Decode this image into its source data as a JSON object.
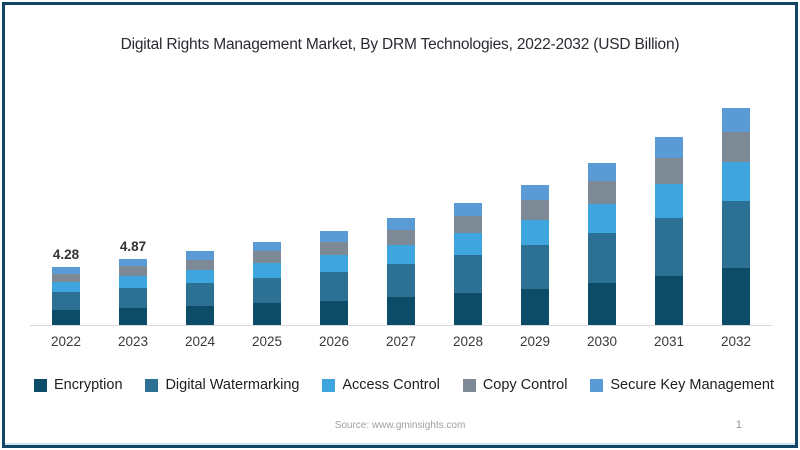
{
  "title": "Digital Rights Management Market, By DRM Technologies, 2022-2032 (USD Billion)",
  "footer": {
    "source": "Source: www.gminsights.com",
    "page_number": "1"
  },
  "colors": {
    "border": "#114563",
    "axis_line": "#d9d9d9",
    "title_text": "#2a2a33",
    "tick_text": "#3a3a3a",
    "footer_text": "#9ba1a6"
  },
  "chart_data": {
    "type": "bar",
    "stacked": true,
    "title": "Digital Rights Management Market, By DRM Technologies, 2022-2032 (USD Billion)",
    "xlabel": "",
    "ylabel": "USD Billion",
    "ylim": [
      0,
      17
    ],
    "grid": false,
    "legend_position": "bottom",
    "categories": [
      "2022",
      "2023",
      "2024",
      "2025",
      "2026",
      "2027",
      "2028",
      "2029",
      "2030",
      "2031",
      "2032"
    ],
    "series": [
      {
        "name": "Encryption",
        "color": "#0d4c67",
        "values": [
          1.11,
          1.27,
          1.42,
          1.6,
          1.81,
          2.05,
          2.35,
          2.7,
          3.12,
          3.61,
          4.19
        ]
      },
      {
        "name": "Digital Watermarking",
        "color": "#2c7093",
        "values": [
          1.33,
          1.51,
          1.69,
          1.91,
          2.15,
          2.45,
          2.81,
          3.22,
          3.72,
          4.31,
          4.99
        ]
      },
      {
        "name": "Access Control",
        "color": "#3fa5de",
        "values": [
          0.77,
          0.88,
          0.98,
          1.11,
          1.25,
          1.42,
          1.63,
          1.87,
          2.16,
          2.5,
          2.9
        ]
      },
      {
        "name": "Copy Control",
        "color": "#7d8a96",
        "values": [
          0.6,
          0.68,
          0.76,
          0.86,
          0.97,
          1.11,
          1.27,
          1.46,
          1.68,
          1.95,
          2.25
        ]
      },
      {
        "name": "Secure Key Management",
        "color": "#5b9bd5",
        "values": [
          0.47,
          0.53,
          0.6,
          0.68,
          0.76,
          0.87,
          1.0,
          1.14,
          1.32,
          1.53,
          1.77
        ]
      }
    ],
    "totals": [
      4.28,
      4.87,
      5.45,
      6.16,
      6.94,
      7.9,
      9.06,
      10.39,
      12.0,
      13.9,
      16.1
    ],
    "data_labels": [
      "4.28",
      "4.87",
      "",
      "",
      "",
      "",
      "",
      "",
      "",
      "",
      ""
    ]
  }
}
